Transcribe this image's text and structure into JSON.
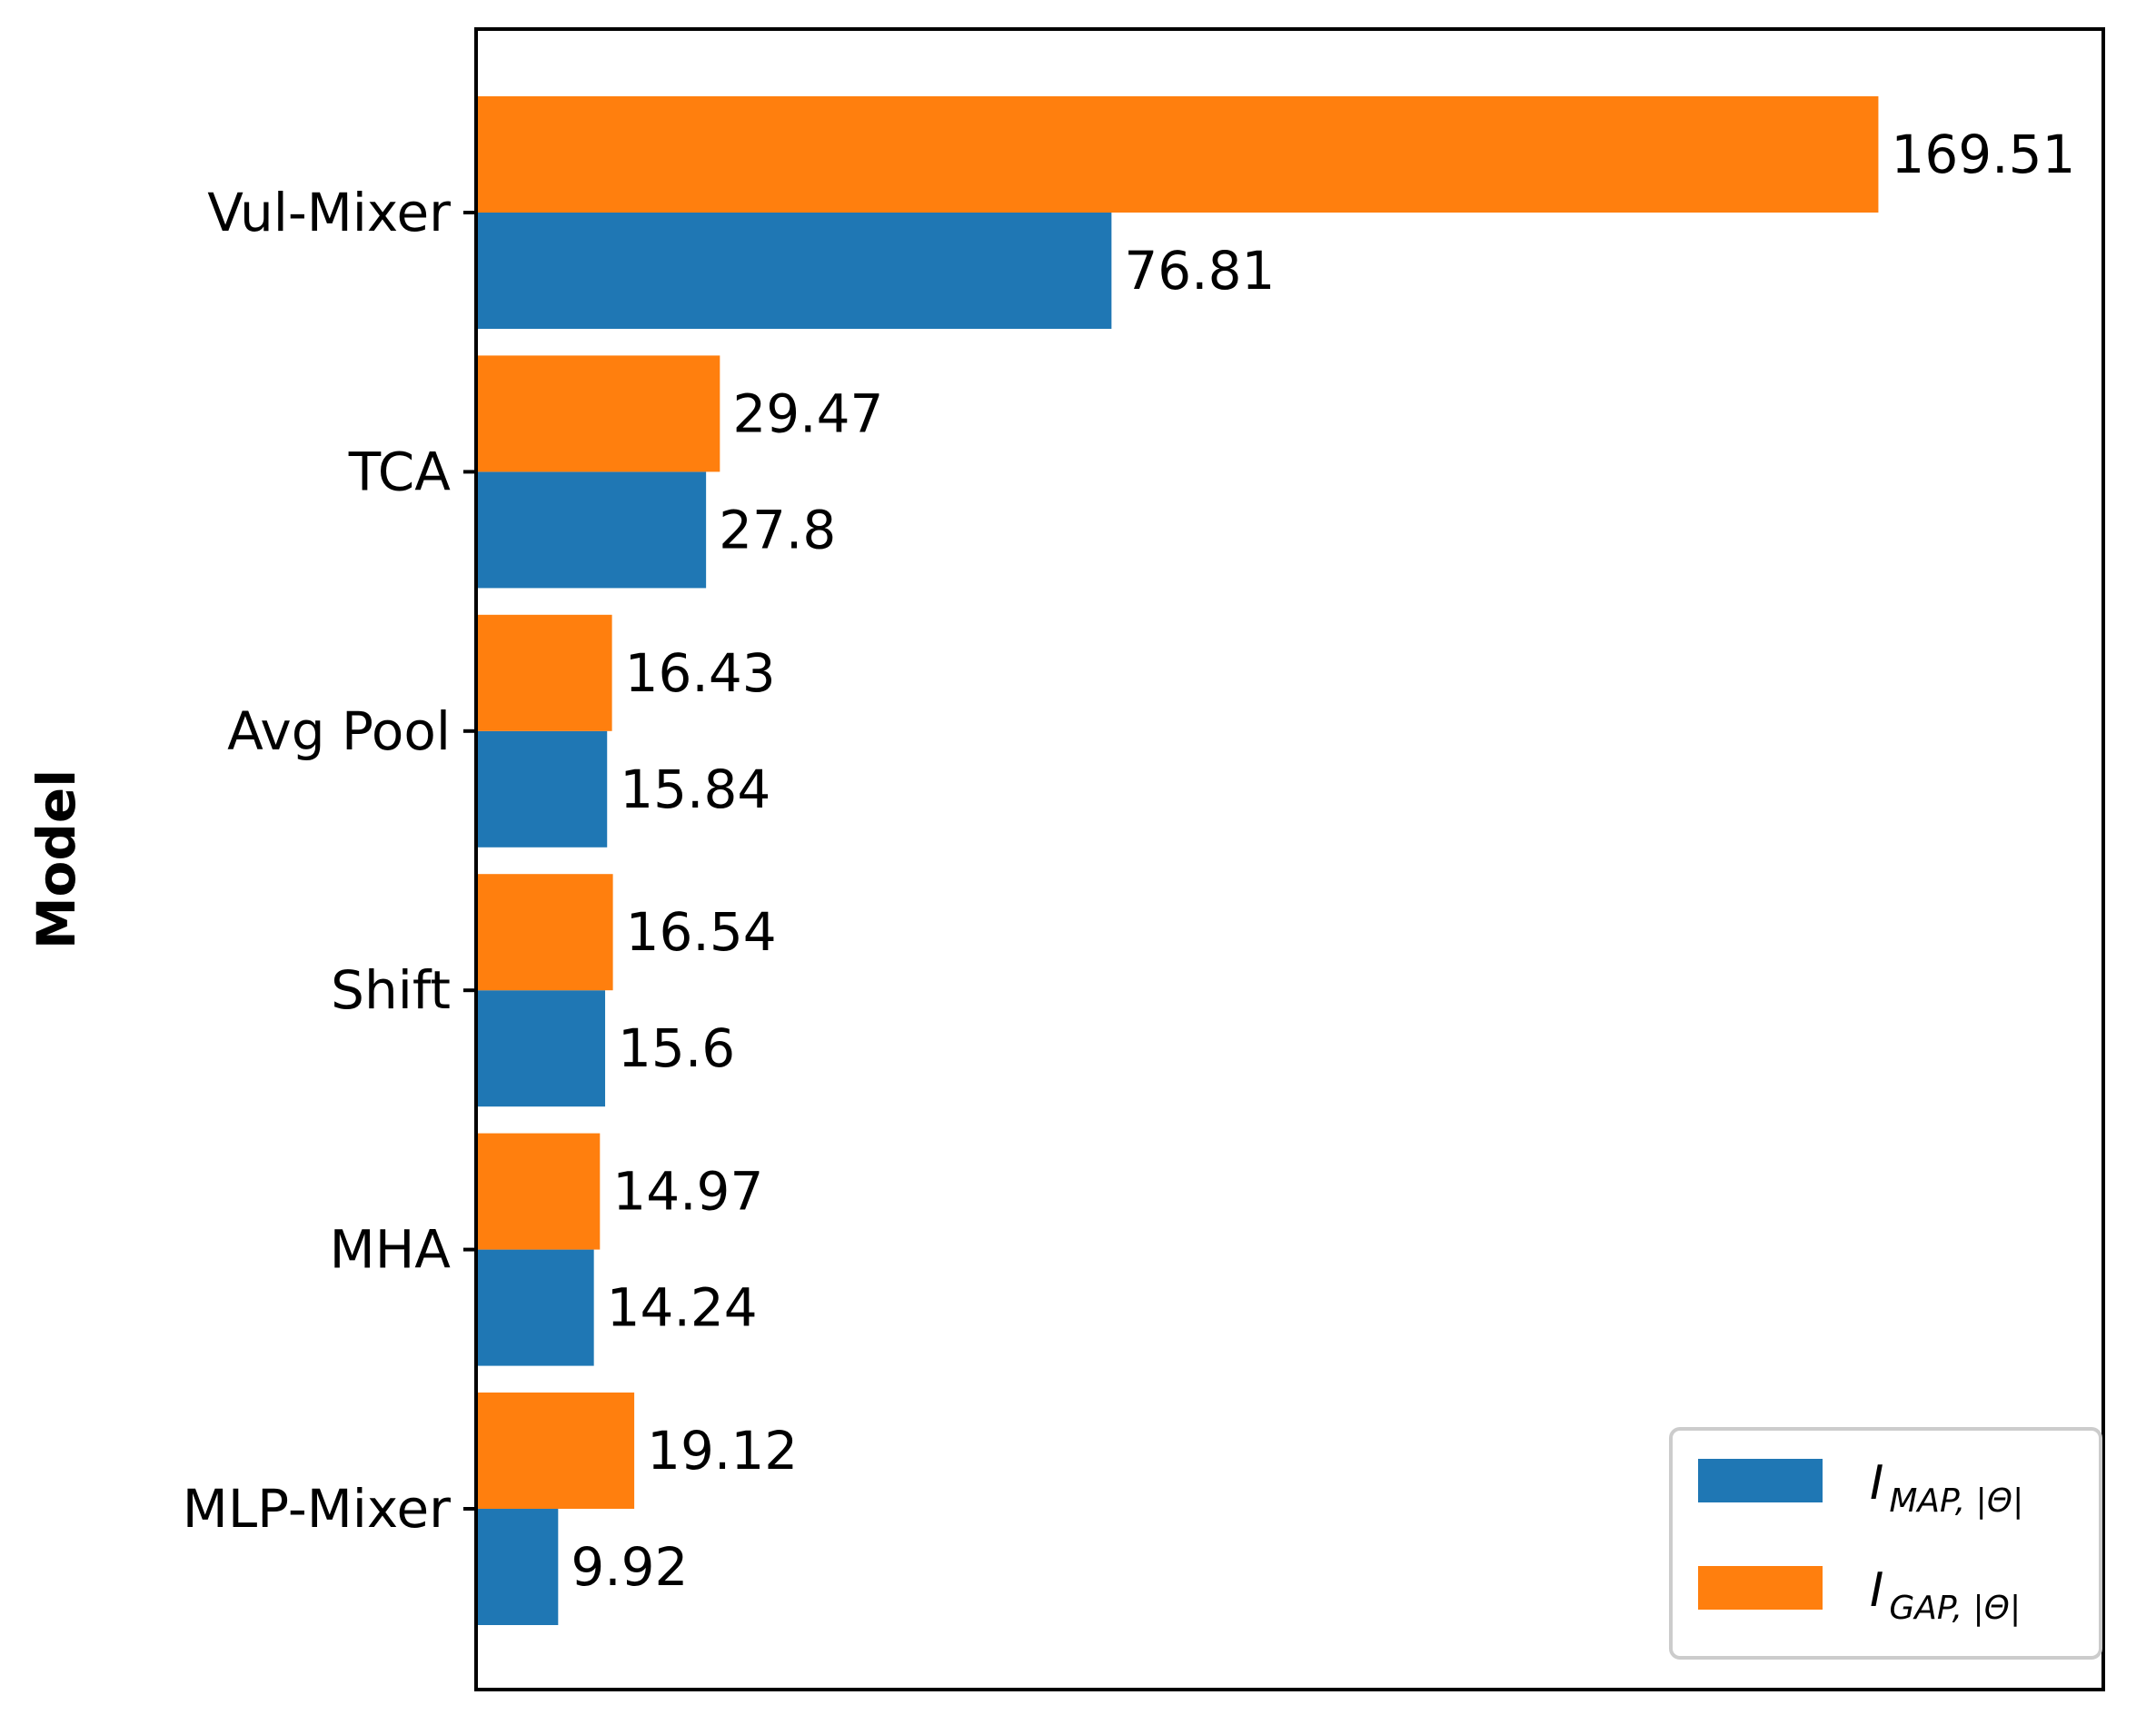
{
  "chart_data": {
    "type": "bar",
    "orientation": "horizontal",
    "title": "",
    "xlabel": "",
    "ylabel": "Model",
    "categories": [
      "Vul-Mixer",
      "TCA",
      "Avg Pool",
      "Shift",
      "MHA",
      "MLP-Mixer"
    ],
    "series": [
      {
        "name": "I_MAP,|Θ|",
        "legend_main": "I",
        "legend_sub": "MAP, |Θ|",
        "color": "#1f77b4",
        "values": [
          76.81,
          27.8,
          15.84,
          15.6,
          14.24,
          9.92
        ],
        "labels": [
          "76.81",
          "27.8",
          "15.84",
          "15.6",
          "14.24",
          "9.92"
        ]
      },
      {
        "name": "I_GAP,|Θ|",
        "legend_main": "I",
        "legend_sub": "GAP, |Θ|",
        "color": "#ff7f0e",
        "values": [
          169.51,
          29.47,
          16.43,
          16.54,
          14.97,
          19.12
        ],
        "labels": [
          "169.51",
          "29.47",
          "16.43",
          "16.54",
          "14.97",
          "19.12"
        ]
      }
    ],
    "xlim": [
      0,
      196.7
    ],
    "x_ticks_visible": false,
    "grid": false,
    "legend_position": "lower-right"
  }
}
